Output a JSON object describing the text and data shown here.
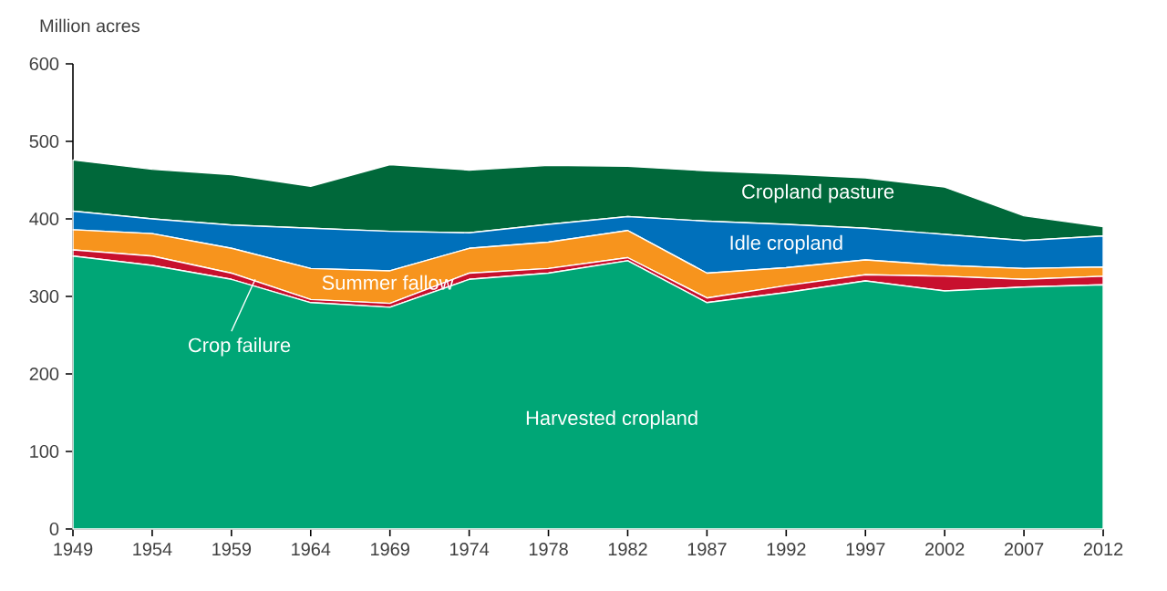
{
  "chart_data": {
    "type": "area",
    "ylabel": "Million acres",
    "stacked": true,
    "categories": [
      "1949",
      "1954",
      "1959",
      "1964",
      "1969",
      "1974",
      "1978",
      "1982",
      "1987",
      "1992",
      "1997",
      "2002",
      "2007",
      "2012"
    ],
    "ylim": [
      0,
      600
    ],
    "yticks": [
      0,
      100,
      200,
      300,
      400,
      500,
      600
    ],
    "series": [
      {
        "name": "Harvested cropland",
        "color": "#00a676",
        "values": [
          352,
          340,
          322,
          292,
          286,
          322,
          330,
          346,
          292,
          305,
          320,
          307,
          312,
          315
        ]
      },
      {
        "name": "Crop failure",
        "color": "#c8102e",
        "values": [
          8,
          12,
          8,
          4,
          5,
          8,
          6,
          4,
          6,
          9,
          8,
          19,
          10,
          11
        ]
      },
      {
        "name": "Summer fallow",
        "color": "#f7941d",
        "values": [
          26,
          29,
          32,
          40,
          42,
          32,
          34,
          35,
          32,
          23,
          19,
          14,
          14,
          12
        ]
      },
      {
        "name": "Idle cropland",
        "color": "#0070bb",
        "values": [
          24,
          19,
          30,
          52,
          51,
          20,
          23,
          18,
          67,
          56,
          41,
          40,
          36,
          40
        ]
      },
      {
        "name": "Cropland pasture",
        "color": "#00683a",
        "values": [
          66,
          64,
          65,
          54,
          86,
          81,
          76,
          65,
          65,
          65,
          65,
          61,
          32,
          12
        ]
      }
    ]
  }
}
